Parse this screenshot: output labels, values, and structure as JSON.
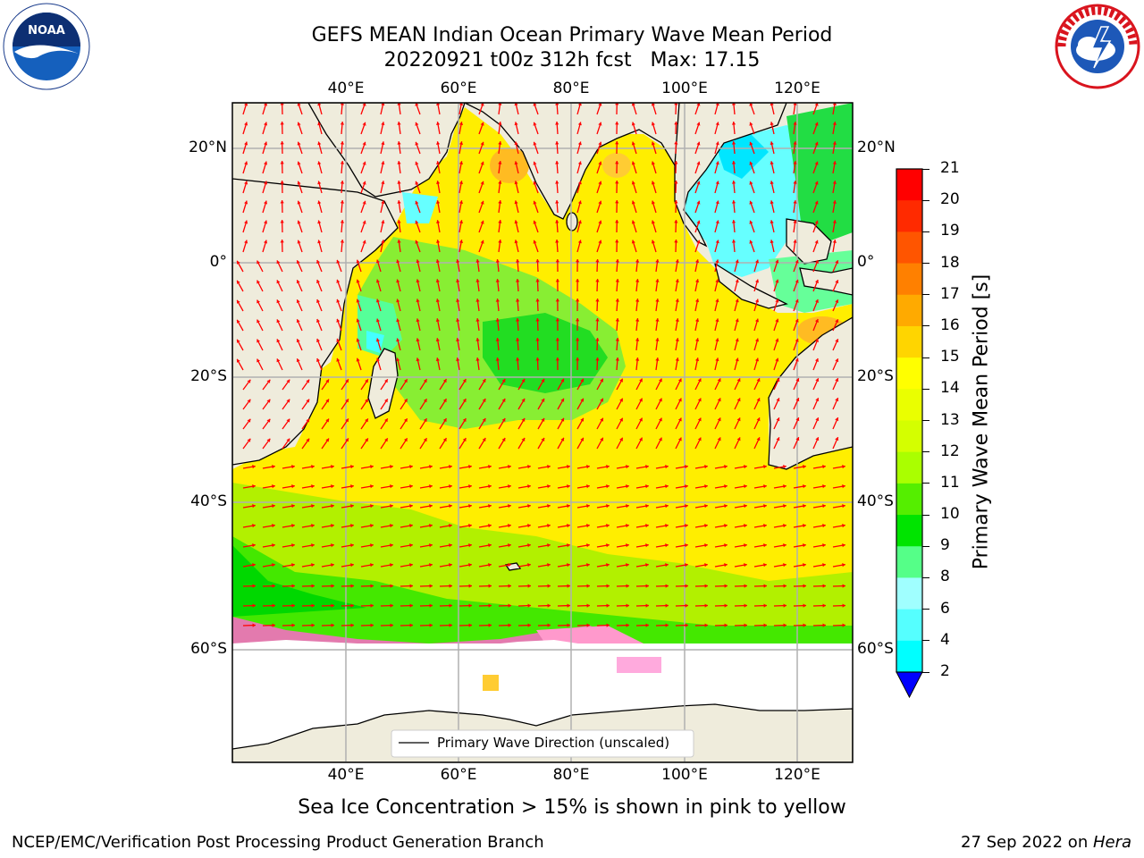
{
  "title": {
    "line1": "GEFS MEAN Indian Ocean Primary Wave Mean Period",
    "line2": "20220921 t00z 312h fcst   Max: 17.15"
  },
  "logos": {
    "left": {
      "text": "NOAA",
      "ring_text": "NATIONAL OCEANIC AND ATMOSPHERIC ADMINISTRATION · U.S. DEPARTMENT OF COMMERCE"
    },
    "right": {
      "text": "NATIONAL WEATHER SERVICE"
    }
  },
  "map": {
    "lon_labels": [
      "40°E",
      "60°E",
      "80°E",
      "100°E",
      "120°E"
    ],
    "lat_labels_left": [
      "20°N",
      "0°",
      "20°S",
      "40°S",
      "60°S"
    ],
    "lat_labels_right": [
      "20°N",
      "0°",
      "20°S",
      "40°S",
      "60°S"
    ],
    "legend_label": "Primary Wave Direction (unscaled)",
    "land_color": "#efecdc",
    "arrow_color": "#ff0000"
  },
  "colorbar": {
    "label": "Primary Wave Mean Period [s]",
    "ticks": [
      "21",
      "20",
      "19",
      "18",
      "17",
      "16",
      "15",
      "14",
      "13",
      "12",
      "11",
      "10",
      "9",
      "8",
      "6",
      "4",
      "2"
    ],
    "colors": [
      "#ff0000",
      "#ff2a00",
      "#ff5500",
      "#ff8000",
      "#ffaa00",
      "#ffd500",
      "#ffff00",
      "#eaff00",
      "#d4ff00",
      "#aaff00",
      "#55ee00",
      "#00e400",
      "#55ff88",
      "#a0ffff",
      "#55ffff",
      "#00ffff",
      "#0088ff"
    ],
    "under_color": "#0000ff"
  },
  "caption": "Sea Ice Concentration > 15% is shown in pink to yellow",
  "footer": {
    "left": "NCEP/EMC/Verification Post Processing Product Generation Branch",
    "right_prefix": "27 Sep 2022 on ",
    "right_host": "Hera"
  }
}
